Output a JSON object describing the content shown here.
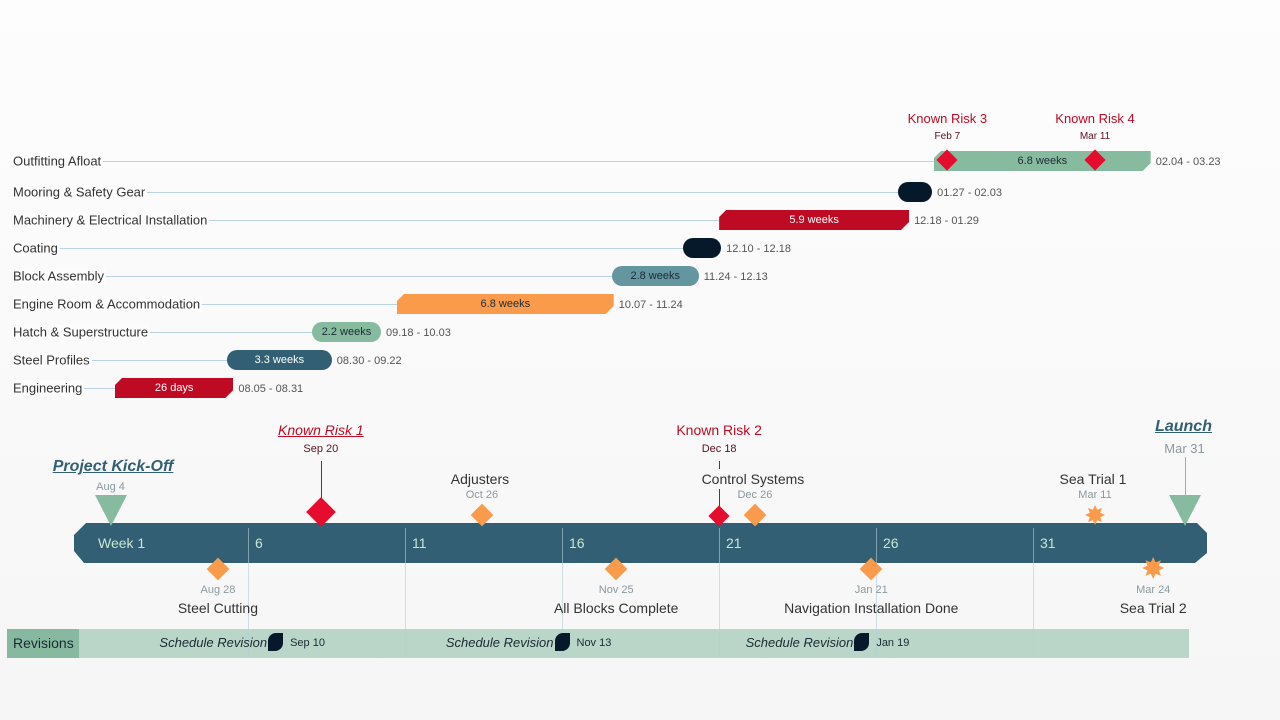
{
  "chart_data": {
    "type": "gantt",
    "tasks": [
      {
        "name": "Outfitting Afloat",
        "start": "02.04",
        "end": "03.23",
        "duration": "6.8 weeks",
        "color": "#87bba0",
        "text_color": "#1c2a33",
        "shape": "chamfer"
      },
      {
        "name": "Mooring & Safety Gear",
        "start": "01.27",
        "end": "02.03",
        "duration": "",
        "color": "#06192a",
        "text_color": "#fff",
        "shape": "pill"
      },
      {
        "name": "Machinery & Electrical Installation",
        "start": "12.18",
        "end": "01.29",
        "duration": "5.9 weeks",
        "color": "#be0a23",
        "text_color": "#fff",
        "shape": "chamfer"
      },
      {
        "name": "Coating",
        "start": "12.10",
        "end": "12.18",
        "duration": "",
        "color": "#06192a",
        "text_color": "#fff",
        "shape": "pill"
      },
      {
        "name": "Block Assembly",
        "start": "11.24",
        "end": "12.13",
        "duration": "2.8 weeks",
        "color": "#6496a0",
        "text_color": "#1c2a33",
        "shape": "pill"
      },
      {
        "name": "Engine Room & Accommodation",
        "start": "10.07",
        "end": "11.24",
        "duration": "6.8 weeks",
        "color": "#fa9b4b",
        "text_color": "#1c2a33",
        "shape": "chamfer"
      },
      {
        "name": "Hatch & Superstructure",
        "start": "09.18",
        "end": "10.03",
        "duration": "2.2 weeks",
        "color": "#87bba0",
        "text_color": "#1c2a33",
        "shape": "pill"
      },
      {
        "name": "Steel Profiles",
        "start": "08.30",
        "end": "09.22",
        "duration": "3.3 weeks",
        "color": "#325f73",
        "text_color": "#fff",
        "shape": "pill"
      },
      {
        "name": "Engineering",
        "start": "08.05",
        "end": "08.31",
        "duration": "26 days",
        "color": "#be0a23",
        "text_color": "#fff",
        "shape": "chamfer"
      }
    ],
    "task_risks": [
      {
        "label": "Known Risk 3",
        "date": "Feb 7",
        "md": "02.07"
      },
      {
        "label": "Known Risk 4",
        "date": "Mar 11",
        "md": "03.11"
      }
    ],
    "timeline": {
      "ticks": [
        "Week 1",
        "6",
        "11",
        "16",
        "21",
        "26",
        "31"
      ],
      "above": [
        {
          "label": "Project Kick-Off",
          "date": "Aug 4",
          "md": "08.04",
          "shape": "triangle",
          "style": "title",
          "color": "#87bba0"
        },
        {
          "label": "Known Risk 1",
          "date": "Sep 20",
          "md": "09.20",
          "shape": "diamond-risk",
          "style": "risk-italic",
          "color": "#e60c2d"
        },
        {
          "label": "Adjusters",
          "date": "Oct 26",
          "md": "10.26",
          "shape": "diamond",
          "style": "normal",
          "color": "#fa9b4b"
        },
        {
          "label": "Known Risk 2",
          "date": "Dec 18",
          "md": "12.18",
          "shape": "diamond-risk-small",
          "style": "risk",
          "color": "#e60c2d"
        },
        {
          "label": "Control Systems",
          "date": "Dec 26",
          "md": "12.26",
          "shape": "diamond",
          "style": "normal",
          "color": "#fa9b4b"
        },
        {
          "label": "Sea Trial 1",
          "date": "Mar 11",
          "md": "03.11",
          "shape": "star",
          "style": "normal",
          "color": "#fa9b4b"
        },
        {
          "label": "Launch",
          "date": "Mar 31",
          "md": "03.31",
          "shape": "triangle-stem",
          "style": "title",
          "color": "#87bba0"
        }
      ],
      "below": [
        {
          "label": "Steel Cutting",
          "date": "Aug 28",
          "md": "08.28",
          "shape": "diamond"
        },
        {
          "label": "All Blocks Complete",
          "date": "Nov 25",
          "md": "11.25",
          "shape": "diamond"
        },
        {
          "label": "Navigation Installation Done",
          "date": "Jan 21",
          "md": "01.21",
          "shape": "diamond"
        },
        {
          "label": "Sea Trial 2",
          "date": "Mar 24",
          "md": "03.24",
          "shape": "star"
        }
      ]
    },
    "revisions": {
      "label": "Revisions",
      "items": [
        {
          "label": "Schedule Revision",
          "date": "Sep 10",
          "md": "09.10"
        },
        {
          "label": "Schedule Revision",
          "date": "Nov 13",
          "md": "11.13"
        },
        {
          "label": "Schedule Revision",
          "date": "Jan 19",
          "md": "01.19"
        }
      ]
    }
  },
  "colors": {
    "band": "#325f73",
    "risk": "#be0a23",
    "revisions_band": "#b9d6c8",
    "revisions_label_bg": "#86b9a0"
  }
}
